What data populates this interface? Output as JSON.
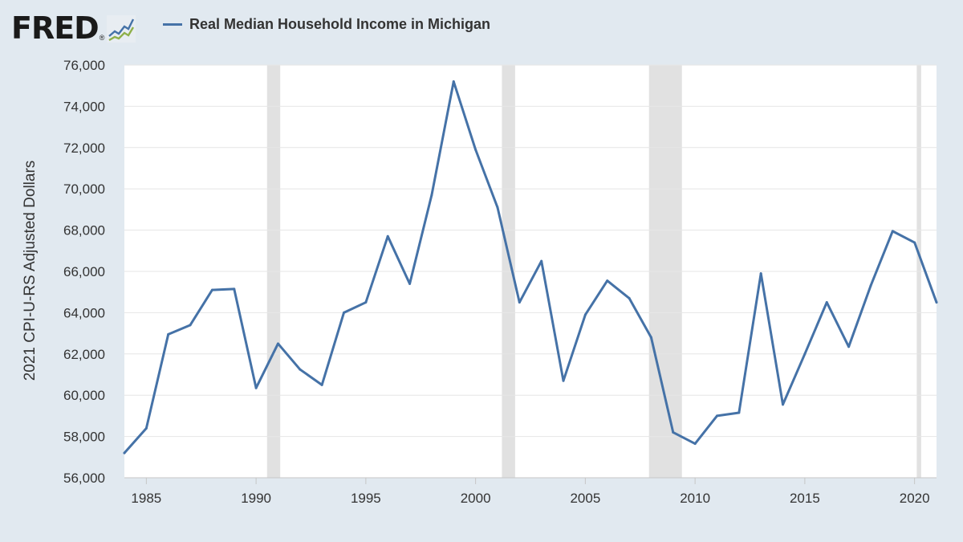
{
  "header": {
    "logo_text": "FRED",
    "logo_reg": "®"
  },
  "colors": {
    "background": "#e1e9f0",
    "plot_background": "#ffffff",
    "series": "#4572a7",
    "recession": "#e1e1e1",
    "grid": "#e6e6e6"
  },
  "chart_data": {
    "type": "line",
    "title": "",
    "xlabel": "",
    "ylabel": "2021 CPI-U-RS Adjusted Dollars",
    "xlim": [
      1984,
      2021
    ],
    "ylim": [
      56000,
      76000
    ],
    "y_ticks": [
      56000,
      58000,
      60000,
      62000,
      64000,
      66000,
      68000,
      70000,
      72000,
      74000,
      76000
    ],
    "y_tick_labels": [
      "56,000",
      "58,000",
      "60,000",
      "62,000",
      "64,000",
      "66,000",
      "68,000",
      "70,000",
      "72,000",
      "74,000",
      "76,000"
    ],
    "x_ticks": [
      1985,
      1990,
      1995,
      2000,
      2005,
      2010,
      2015,
      2020
    ],
    "x_tick_labels": [
      "1985",
      "1990",
      "1995",
      "2000",
      "2005",
      "2010",
      "2015",
      "2020"
    ],
    "grid": true,
    "legend_position": "top-left",
    "recessions": [
      [
        1990.5,
        1991.1
      ],
      [
        2001.2,
        2001.8
      ],
      [
        2007.9,
        2009.4
      ],
      [
        2020.1,
        2020.3
      ]
    ],
    "series": [
      {
        "name": "Real Median Household Income in Michigan",
        "x": [
          1984,
          1985,
          1986,
          1987,
          1988,
          1989,
          1990,
          1991,
          1992,
          1993,
          1994,
          1995,
          1996,
          1997,
          1998,
          1999,
          2000,
          2001,
          2002,
          2003,
          2004,
          2005,
          2006,
          2007,
          2008,
          2009,
          2010,
          2011,
          2012,
          2013,
          2014,
          2015,
          2016,
          2017,
          2018,
          2019,
          2020,
          2021
        ],
        "values": [
          57200,
          58400,
          62950,
          63400,
          65100,
          65150,
          60350,
          62500,
          61250,
          60500,
          64000,
          64500,
          67700,
          65400,
          69700,
          75200,
          71900,
          69100,
          64500,
          66500,
          60700,
          63900,
          65550,
          64700,
          62800,
          58200,
          57650,
          59000,
          59150,
          65900,
          59550,
          62000,
          64500,
          62350,
          65300,
          67950,
          67400,
          64500
        ]
      }
    ]
  }
}
